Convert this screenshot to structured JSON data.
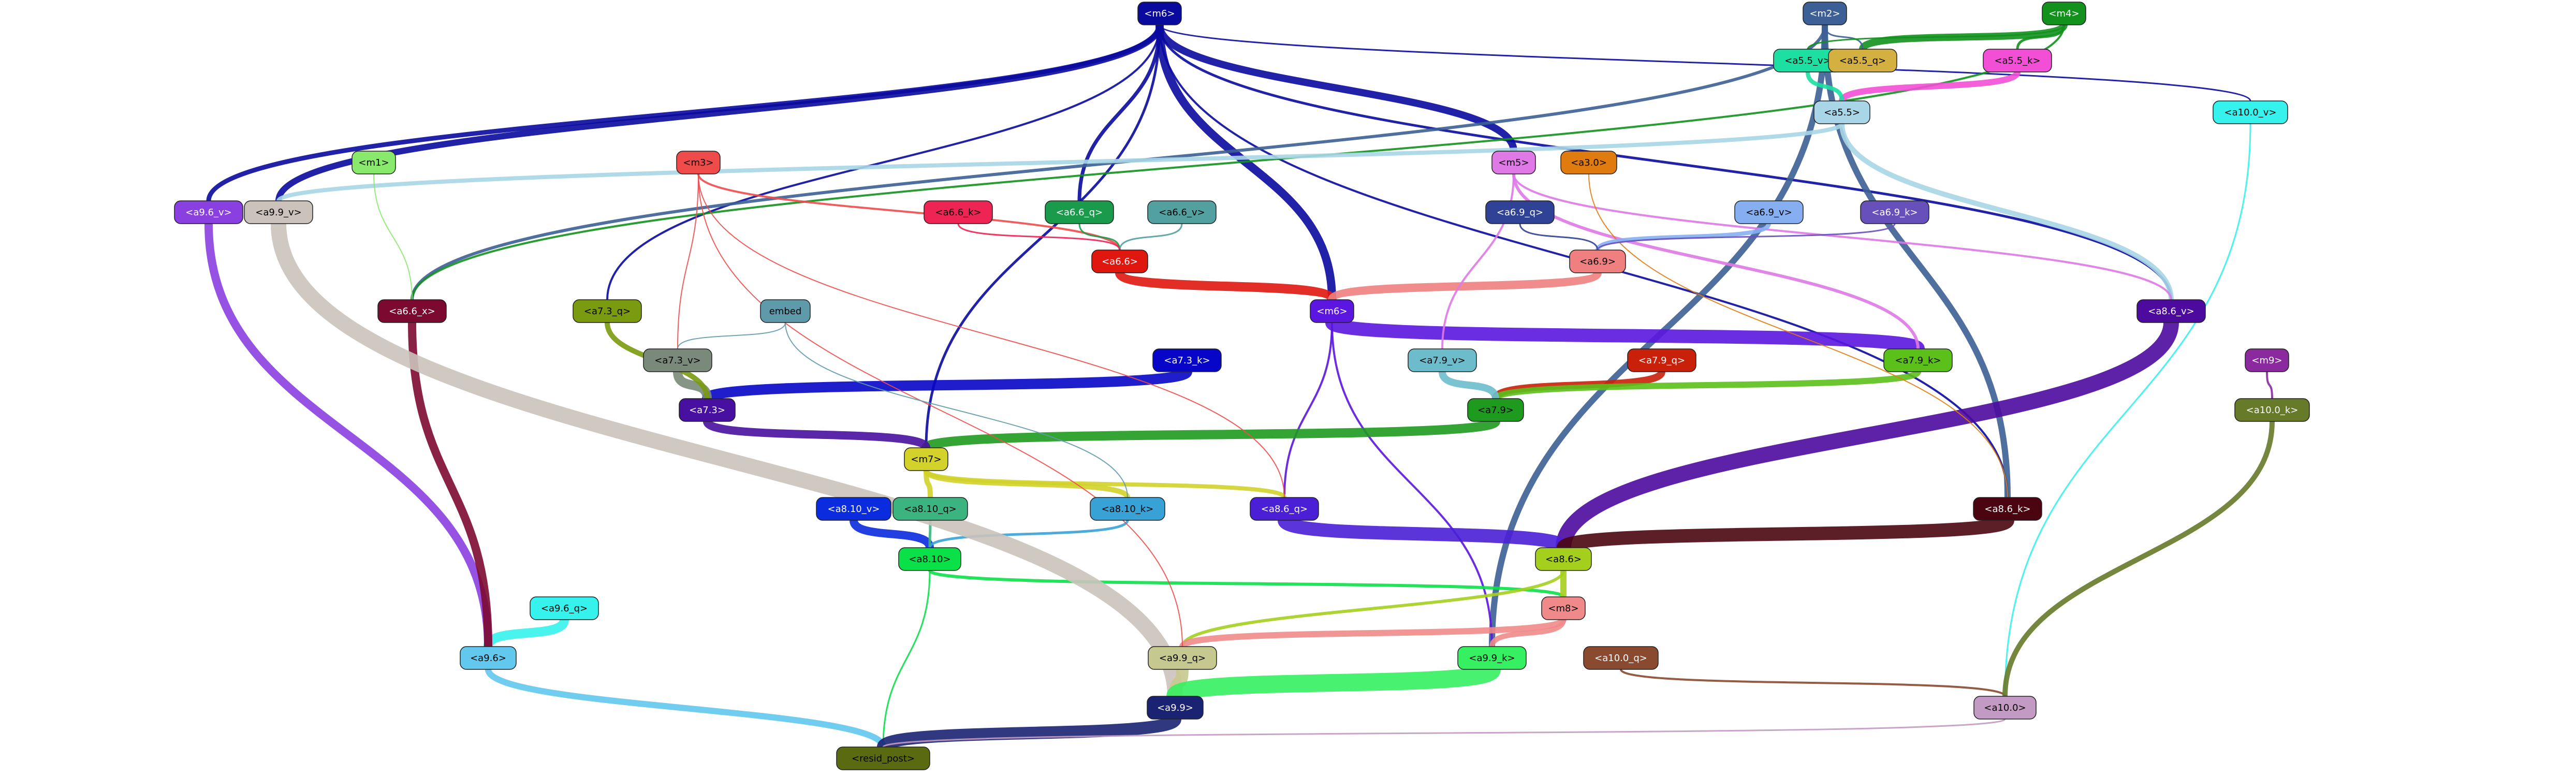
{
  "nodes": [
    {
      "id": "c4",
      "label": "<m6>",
      "fill": "#0a0a9e",
      "text": "#ffffff"
    },
    {
      "id": "m2",
      "label": "<m2>",
      "fill": "#3c5f95",
      "text": "#ffffff"
    },
    {
      "id": "m4",
      "label": "<m4>",
      "fill": "#12911d",
      "text": "#ffffff"
    },
    {
      "id": "a55v",
      "label": "<a5.5_v>",
      "fill": "#1ddfa2",
      "text": "#000000"
    },
    {
      "id": "a55q",
      "label": "<a5.5_q>",
      "fill": "#d4b040",
      "text": "#000000"
    },
    {
      "id": "a55k",
      "label": "<a5.5_k>",
      "fill": "#f24fd6",
      "text": "#000000"
    },
    {
      "id": "a55",
      "label": "<a5.5>",
      "fill": "#a9d6e6",
      "text": "#000000"
    },
    {
      "id": "a100v",
      "label": "<a10.0_v>",
      "fill": "#35f2ec",
      "text": "#000000"
    },
    {
      "id": "m1",
      "label": "<m1>",
      "fill": "#88e96d",
      "text": "#000000"
    },
    {
      "id": "m3",
      "label": "<m3>",
      "fill": "#ef4b4b",
      "text": "#000000"
    },
    {
      "id": "m5",
      "label": "<m5>",
      "fill": "#de79e6",
      "text": "#000000"
    },
    {
      "id": "a30",
      "label": "<a3.0>",
      "fill": "#e07b10",
      "text": "#000000"
    },
    {
      "id": "a96v",
      "label": "<a9.6_v>",
      "fill": "#8a3fe0",
      "text": "#ffffff"
    },
    {
      "id": "a99v",
      "label": "<a9.9_v>",
      "fill": "#cbc3bb",
      "text": "#000000"
    },
    {
      "id": "a66k",
      "label": "<a6.6_k>",
      "fill": "#ee2455",
      "text": "#000000"
    },
    {
      "id": "a66q",
      "label": "<a6.6_q>",
      "fill": "#1a9b4b",
      "text": "#ffffff"
    },
    {
      "id": "a66v",
      "label": "<a6.6_v>",
      "fill": "#52a0a0",
      "text": "#000000"
    },
    {
      "id": "a69q",
      "label": "<a6.9_q>",
      "fill": "#2f4295",
      "text": "#ffffff"
    },
    {
      "id": "a69v",
      "label": "<a6.9_v>",
      "fill": "#86aff2",
      "text": "#000000"
    },
    {
      "id": "a69k",
      "label": "<a6.9_k>",
      "fill": "#6850bb",
      "text": "#ffffff"
    },
    {
      "id": "a66",
      "label": "<a6.6>",
      "fill": "#e0170f",
      "text": "#ffffff"
    },
    {
      "id": "a69",
      "label": "<a6.9>",
      "fill": "#f08080",
      "text": "#000000"
    },
    {
      "id": "a73q",
      "label": "<a7.3_q>",
      "fill": "#7a9a0f",
      "text": "#000000"
    },
    {
      "id": "embed",
      "label": "embed",
      "fill": "#5f9aaa",
      "text": "#000000"
    },
    {
      "id": "a66x",
      "label": "<a6.6_x>",
      "fill": "#7c0a30",
      "text": "#ffffff"
    },
    {
      "id": "a73v",
      "label": "<a7.3_v>",
      "fill": "#7a8a7a",
      "text": "#000000"
    },
    {
      "id": "m6",
      "label": "<m6>",
      "fill": "#5b16df",
      "text": "#ffffff"
    },
    {
      "id": "a79v",
      "label": "<a7.9_v>",
      "fill": "#6cbccc",
      "text": "#000000"
    },
    {
      "id": "a79q",
      "label": "<a7.9_q>",
      "fill": "#c9200a",
      "text": "#ffffff"
    },
    {
      "id": "a79k",
      "label": "<a7.9_k>",
      "fill": "#5cc01a",
      "text": "#000000"
    },
    {
      "id": "a73",
      "label": "<a7.3>",
      "fill": "#4810a0",
      "text": "#ffffff"
    },
    {
      "id": "a73k",
      "label": "<a7.3_k>",
      "fill": "#0606c8",
      "text": "#ffffff"
    },
    {
      "id": "a79",
      "label": "<a7.9>",
      "fill": "#1e9a1e",
      "text": "#000000"
    },
    {
      "id": "m7",
      "label": "<m7>",
      "fill": "#d2d22a",
      "text": "#000000"
    },
    {
      "id": "a86v",
      "label": "<a8.6_v>",
      "fill": "#4d0a9e",
      "text": "#ffffff"
    },
    {
      "id": "m9",
      "label": "<m9>",
      "fill": "#8a2a9e",
      "text": "#ffffff"
    },
    {
      "id": "a100k",
      "label": "<a10.0_k>",
      "fill": "#667a2a",
      "text": "#ffffff"
    },
    {
      "id": "a810v",
      "label": "<a8.10_v>",
      "fill": "#0a2bde",
      "text": "#ffffff"
    },
    {
      "id": "a810q",
      "label": "<a8.10_q>",
      "fill": "#3cb480",
      "text": "#000000"
    },
    {
      "id": "a810k",
      "label": "<a8.10_k>",
      "fill": "#38a2d6",
      "text": "#000000"
    },
    {
      "id": "a86q",
      "label": "<a8.6_q>",
      "fill": "#4a1fd6",
      "text": "#ffffff"
    },
    {
      "id": "a86k",
      "label": "<a8.6_k>",
      "fill": "#4a0510",
      "text": "#ffffff"
    },
    {
      "id": "a810",
      "label": "<a8.10>",
      "fill": "#0ae048",
      "text": "#000000"
    },
    {
      "id": "a86",
      "label": "<a8.6>",
      "fill": "#a5cf1d",
      "text": "#000000"
    },
    {
      "id": "a96q",
      "label": "<a9.6_q>",
      "fill": "#35f2ec",
      "text": "#000000"
    },
    {
      "id": "m8",
      "label": "<m8>",
      "fill": "#f08a8a",
      "text": "#000000"
    },
    {
      "id": "a96",
      "label": "<a9.6>",
      "fill": "#62c8ee",
      "text": "#000000"
    },
    {
      "id": "a99q",
      "label": "<a9.9_q>",
      "fill": "#c6c98f",
      "text": "#000000"
    },
    {
      "id": "a99k",
      "label": "<a9.9_k>",
      "fill": "#35f060",
      "text": "#000000"
    },
    {
      "id": "a100q",
      "label": "<a10.0_q>",
      "fill": "#8a4a30",
      "text": "#ffffff"
    },
    {
      "id": "a100",
      "label": "<a10.0>",
      "fill": "#c39ac3",
      "text": "#000000"
    },
    {
      "id": "a99",
      "label": "<a9.9>",
      "fill": "#1a2272",
      "text": "#ffffff"
    },
    {
      "id": "resid",
      "label": "<resid_post>",
      "fill": "#5a6a10",
      "text": "#000000"
    }
  ],
  "edges": [
    {
      "from": "c4",
      "to": "a96v",
      "color": "#0a0a9e",
      "weight": 9
    },
    {
      "from": "c4",
      "to": "a99v",
      "color": "#0a0a9e",
      "weight": 12
    },
    {
      "from": "c4",
      "to": "a66q",
      "color": "#0a0a9e",
      "weight": 7
    },
    {
      "from": "c4",
      "to": "m6",
      "color": "#0a0a9e",
      "weight": 16
    },
    {
      "from": "c4",
      "to": "a86v",
      "color": "#0a0a9e",
      "weight": 5
    },
    {
      "from": "c4",
      "to": "m5",
      "color": "#0a0a9e",
      "weight": 14
    },
    {
      "from": "c4",
      "to": "m7",
      "color": "#0a0a9e",
      "weight": 5
    },
    {
      "from": "c4",
      "to": "a73q",
      "color": "#0a0a9e",
      "weight": 4
    },
    {
      "from": "c4",
      "to": "a100v",
      "color": "#0a0a9e",
      "weight": 3
    },
    {
      "from": "c4",
      "to": "a86k",
      "color": "#0a0a9e",
      "weight": 4
    },
    {
      "from": "m2",
      "to": "a86k",
      "color": "#3c5f95",
      "weight": 12
    },
    {
      "from": "m2",
      "to": "a99k",
      "color": "#3c5f95",
      "weight": 12
    },
    {
      "from": "m2",
      "to": "a66x",
      "color": "#3c5f95",
      "weight": 6
    },
    {
      "from": "m4",
      "to": "a55q",
      "color": "#12911d",
      "weight": 14
    },
    {
      "from": "m4",
      "to": "a55k",
      "color": "#12911d",
      "weight": 5
    },
    {
      "from": "m4",
      "to": "a66x",
      "color": "#12911d",
      "weight": 4
    },
    {
      "from": "a55k",
      "to": "a55",
      "color": "#f24fd6",
      "weight": 12
    },
    {
      "from": "a55v",
      "to": "a55",
      "color": "#1ddfa2",
      "weight": 8
    },
    {
      "from": "a55",
      "to": "a86v",
      "color": "#a9d6e6",
      "weight": 10
    },
    {
      "from": "a55",
      "to": "a99v",
      "color": "#a9d6e6",
      "weight": 8
    },
    {
      "from": "a100v",
      "to": "a100",
      "color": "#35f2ec",
      "weight": 3
    },
    {
      "from": "a66",
      "to": "m6",
      "color": "#e0170f",
      "weight": 18
    },
    {
      "from": "a69",
      "to": "m6",
      "color": "#f08080",
      "weight": 16
    },
    {
      "from": "m6",
      "to": "a79k",
      "color": "#5b16df",
      "weight": 26
    },
    {
      "from": "m6",
      "to": "a86q",
      "color": "#5b16df",
      "weight": 4
    },
    {
      "from": "m6",
      "to": "a99k",
      "color": "#5b16df",
      "weight": 4
    },
    {
      "from": "a79q",
      "to": "a79",
      "color": "#c9200a",
      "weight": 14
    },
    {
      "from": "a79k",
      "to": "a79",
      "color": "#5cc01a",
      "weight": 12
    },
    {
      "from": "a79v",
      "to": "a79",
      "color": "#6cbccc",
      "weight": 14
    },
    {
      "from": "a79",
      "to": "m7",
      "color": "#1e9a1e",
      "weight": 18
    },
    {
      "from": "a73k",
      "to": "a73",
      "color": "#0606c8",
      "weight": 20
    },
    {
      "from": "a73v",
      "to": "a73",
      "color": "#7a8a7a",
      "weight": 18
    },
    {
      "from": "a73q",
      "to": "a73",
      "color": "#7a9a0f",
      "weight": 10
    },
    {
      "from": "a73",
      "to": "m7",
      "color": "#4810a0",
      "weight": 16
    },
    {
      "from": "m7",
      "to": "a810q",
      "color": "#d2d22a",
      "weight": 10
    },
    {
      "from": "m7",
      "to": "a810k",
      "color": "#d2d22a",
      "weight": 10
    },
    {
      "from": "m7",
      "to": "a86q",
      "color": "#d2d22a",
      "weight": 8
    },
    {
      "from": "a810v",
      "to": "a810",
      "color": "#0a2bde",
      "weight": 16
    },
    {
      "from": "a810q",
      "to": "a810",
      "color": "#3cb480",
      "weight": 5
    },
    {
      "from": "a810k",
      "to": "a810",
      "color": "#38a2d6",
      "weight": 5
    },
    {
      "from": "a810",
      "to": "m8",
      "color": "#0ae048",
      "weight": 6
    },
    {
      "from": "a810",
      "to": "resid",
      "color": "#0ae048",
      "weight": 3
    },
    {
      "from": "a86v",
      "to": "a86",
      "color": "#4d0a9e",
      "weight": 30
    },
    {
      "from": "a86q",
      "to": "a86",
      "color": "#4a1fd6",
      "weight": 26
    },
    {
      "from": "a86k",
      "to": "a86",
      "color": "#4a0510",
      "weight": 26
    },
    {
      "from": "a86",
      "to": "m8",
      "color": "#a5cf1d",
      "weight": 12
    },
    {
      "from": "a86",
      "to": "a99q",
      "color": "#a5cf1d",
      "weight": 6
    },
    {
      "from": "m8",
      "to": "a99q",
      "color": "#f08a8a",
      "weight": 12
    },
    {
      "from": "m8",
      "to": "a99k",
      "color": "#f08a8a",
      "weight": 10
    },
    {
      "from": "a96q",
      "to": "a96",
      "color": "#35f2ec",
      "weight": 18
    },
    {
      "from": "a96v",
      "to": "a96",
      "color": "#8a3fe0",
      "weight": 16
    },
    {
      "from": "a66x",
      "to": "a96",
      "color": "#7c0a30",
      "weight": 16
    },
    {
      "from": "a96",
      "to": "resid",
      "color": "#62c8ee",
      "weight": 12
    },
    {
      "from": "a99v",
      "to": "a99",
      "color": "#cbc3bb",
      "weight": 30
    },
    {
      "from": "a99q",
      "to": "a99",
      "color": "#c6c98f",
      "weight": 24
    },
    {
      "from": "a99k",
      "to": "a99",
      "color": "#35f060",
      "weight": 34
    },
    {
      "from": "a99",
      "to": "resid",
      "color": "#1a2272",
      "weight": 24
    },
    {
      "from": "a100q",
      "to": "a100",
      "color": "#8a4a30",
      "weight": 4
    },
    {
      "from": "a100k",
      "to": "a100",
      "color": "#667a2a",
      "weight": 10
    },
    {
      "from": "m9",
      "to": "a100k",
      "color": "#8a2a9e",
      "weight": 4
    },
    {
      "from": "a100",
      "to": "resid",
      "color": "#c39ac3",
      "weight": 3
    },
    {
      "from": "m3",
      "to": "a66",
      "color": "#ef4b4b",
      "weight": 4
    },
    {
      "from": "m3",
      "to": "a73v",
      "color": "#ef4b4b",
      "weight": 2
    },
    {
      "from": "m3",
      "to": "a99q",
      "color": "#ef4b4b",
      "weight": 2
    },
    {
      "from": "m3",
      "to": "a86q",
      "color": "#ef4b4b",
      "weight": 2
    },
    {
      "from": "m5",
      "to": "a79k",
      "color": "#de79e6",
      "weight": 6
    },
    {
      "from": "m5",
      "to": "a86v",
      "color": "#de79e6",
      "weight": 4
    },
    {
      "from": "m5",
      "to": "a79v",
      "color": "#de79e6",
      "weight": 4
    },
    {
      "from": "m1",
      "to": "a66x",
      "color": "#88e96d",
      "weight": 2
    },
    {
      "from": "a30",
      "to": "a86k",
      "color": "#e07b10",
      "weight": 2
    },
    {
      "from": "a66q",
      "to": "a66",
      "color": "#1a9b4b",
      "weight": 3
    },
    {
      "from": "a66v",
      "to": "a66",
      "color": "#52a0a0",
      "weight": 3
    },
    {
      "from": "a66k",
      "to": "a66",
      "color": "#ee2455",
      "weight": 3
    },
    {
      "from": "a69v",
      "to": "a69",
      "color": "#86aff2",
      "weight": 8
    },
    {
      "from": "a69q",
      "to": "a69",
      "color": "#2f4295",
      "weight": 3
    },
    {
      "from": "a69k",
      "to": "a69",
      "color": "#6850bb",
      "weight": 3
    },
    {
      "from": "embed",
      "to": "a73v",
      "color": "#5f9aaa",
      "weight": 2
    },
    {
      "from": "embed",
      "to": "a810k",
      "color": "#5f9aaa",
      "weight": 2
    },
    {
      "from": "m2",
      "to": "a55q",
      "color": "#3c5f95",
      "weight": 3
    },
    {
      "from": "m4",
      "to": "a55v",
      "color": "#12911d",
      "weight": 3
    }
  ]
}
